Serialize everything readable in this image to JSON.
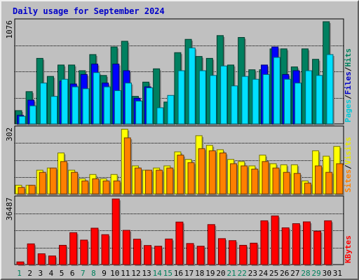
{
  "chart_data": {
    "type": "bar",
    "title": "Daily usage for September 2024",
    "days": [
      "1",
      "2",
      "3",
      "4",
      "5",
      "6",
      "7",
      "8",
      "9",
      "10",
      "11",
      "12",
      "13",
      "14",
      "15",
      "16",
      "17",
      "18",
      "19",
      "20",
      "21",
      "22",
      "23",
      "24",
      "25",
      "26",
      "27",
      "28",
      "29",
      "30",
      "31"
    ],
    "weekend_days": [
      1,
      7,
      8,
      14,
      15,
      21,
      22,
      28,
      29
    ],
    "panels": [
      {
        "id": "hits_files_pages",
        "ymax": 1076,
        "ymax_label": "1076",
        "legend": [
          {
            "text": "Pages",
            "color": "#00c8d8"
          },
          {
            "text": "/",
            "color": "#000000"
          },
          {
            "text": "Files",
            "color": "#0000c8"
          },
          {
            "text": "/",
            "color": "#000000"
          },
          {
            "text": "Hits",
            "color": "#00805c"
          }
        ],
        "series": [
          {
            "name": "Hits",
            "color": "#008060",
            "values": [
              140,
              340,
              690,
              500,
              620,
              620,
              560,
              730,
              510,
              810,
              870,
              290,
              440,
              580,
              230,
              750,
              890,
              710,
              690,
              930,
              620,
              910,
              570,
              570,
              790,
              790,
              600,
              790,
              680,
              1076,
              null
            ]
          },
          {
            "name": "Files",
            "color": "#0000ff",
            "values": [
              90,
              250,
              0,
              0,
              450,
              420,
              520,
              630,
              430,
              630,
              560,
              270,
              390,
              0,
              0,
              0,
              0,
              0,
              0,
              0,
              0,
              0,
              0,
              620,
              810,
              520,
              560,
              0,
              0,
              0,
              null
            ]
          },
          {
            "name": "Pages",
            "color": "#00e0ff",
            "values": [
              80,
              190,
              430,
              290,
              470,
              390,
              370,
              540,
              390,
              350,
              430,
              240,
              380,
              170,
              300,
              560,
              800,
              560,
              510,
              610,
              400,
              500,
              470,
              520,
              700,
              470,
              430,
              560,
              510,
              730,
              null
            ]
          }
        ]
      },
      {
        "id": "visits_sites",
        "ymax": 302,
        "ymax_label": "302",
        "legend": [
          {
            "text": "Sites",
            "color": "#ff8000"
          },
          {
            "text": "/",
            "color": "#000000"
          },
          {
            "text": "Visits",
            "color": "#e8e800"
          }
        ],
        "series": [
          {
            "name": "Visits",
            "color": "#ffff00",
            "values": [
              40,
              40,
              110,
              120,
              190,
              110,
              70,
              90,
              70,
              90,
              300,
              130,
              110,
              120,
              130,
              195,
              160,
              270,
              225,
              205,
              160,
              150,
              130,
              180,
              140,
              135,
              135,
              60,
              200,
              175,
              220
            ]
          },
          {
            "name": "Sites",
            "color": "#ff8000",
            "values": [
              30,
              40,
              100,
              120,
              150,
              100,
              60,
              70,
              60,
              60,
              260,
              120,
              110,
              110,
              120,
              180,
              145,
              210,
              200,
              190,
              140,
              130,
              115,
              150,
              120,
              100,
              95,
              50,
              130,
              100,
              140
            ]
          }
        ]
      },
      {
        "id": "kbytes",
        "ymax": 36487,
        "ymax_label": "36487",
        "legend": [
          {
            "text": "KBytes",
            "color": "#ff0000"
          }
        ],
        "series": [
          {
            "name": "KBytes",
            "color": "#ff0000",
            "values": [
              1500,
              11500,
              6000,
              4800,
              10700,
              17700,
              13600,
              20200,
              16600,
              36400,
              19000,
              14100,
              10600,
              10200,
              14200,
              23600,
              11700,
              10200,
              22200,
              14400,
              13300,
              10700,
              11900,
              24300,
              27000,
              20400,
              22700,
              23700,
              18500,
              24300,
              null
            ]
          }
        ]
      }
    ]
  }
}
